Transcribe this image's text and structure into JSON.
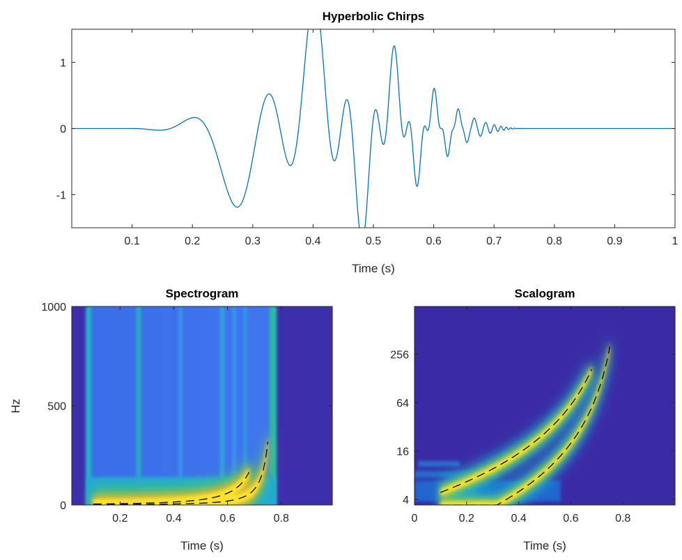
{
  "chart_data": [
    {
      "type": "line",
      "title": "Hyperbolic Chirps",
      "xlabel": "Time (s)",
      "ylabel": "",
      "xlim": [
        0,
        1
      ],
      "ylim": [
        -1.5,
        1.5
      ],
      "xticks": [
        0.1,
        0.2,
        0.3,
        0.4,
        0.5,
        0.6,
        0.7,
        0.8,
        0.9,
        1
      ],
      "xtick_labels": [
        "0.1",
        "0.2",
        "0.3",
        "0.4",
        "0.5",
        "0.6",
        "0.7",
        "0.8",
        "0.9",
        "1"
      ],
      "yticks": [
        -1,
        0,
        1
      ],
      "ytick_labels": [
        "-1",
        "0",
        "1"
      ],
      "line_color": "#0072BD",
      "grid": false,
      "signal": {
        "sample_rate": 2000,
        "components": [
          {
            "start": 0.1,
            "end": 0.68,
            "phase_scale": 15,
            "singularity": 0.8
          },
          {
            "start": 0.1,
            "end": 0.75,
            "phase_scale": 5,
            "singularity": 0.8
          }
        ]
      }
    },
    {
      "type": "heatmap",
      "title": "Spectrogram",
      "xlabel": "Time (s)",
      "ylabel": "Hz",
      "xlim": [
        0.02,
        0.99
      ],
      "ylim": [
        0,
        1000
      ],
      "xticks": [
        0.2,
        0.4,
        0.6,
        0.8
      ],
      "xtick_labels": [
        "0.2",
        "0.4",
        "0.6",
        "0.8"
      ],
      "yticks": [
        0,
        500,
        1000
      ],
      "ytick_labels": [
        "0",
        "500",
        "1000"
      ],
      "colormap": "parula",
      "ridges": [
        {
          "style": "dashed",
          "color": "#000000",
          "phase_scale": 15,
          "singularity": 0.8,
          "t_start": 0.1,
          "t_end": 0.68
        },
        {
          "style": "dashed",
          "color": "#000000",
          "phase_scale": 5,
          "singularity": 0.8,
          "t_start": 0.1,
          "t_end": 0.75
        }
      ]
    },
    {
      "type": "heatmap",
      "title": "Scalogram",
      "xlabel": "Time (s)",
      "ylabel": "",
      "xlim": [
        0,
        1
      ],
      "ylim": [
        3.4,
        1000
      ],
      "yscale": "log",
      "xticks": [
        0,
        0.2,
        0.4,
        0.6,
        0.8
      ],
      "xtick_labels": [
        "0",
        "0.2",
        "0.4",
        "0.6",
        "0.8"
      ],
      "yticks": [
        4,
        16,
        64,
        256
      ],
      "ytick_labels": [
        "4",
        "16",
        "64",
        "256"
      ],
      "colormap": "parula",
      "ridges": [
        {
          "style": "dashed",
          "color": "#000000",
          "phase_scale": 15,
          "singularity": 0.8,
          "t_start": 0.1,
          "t_end": 0.68
        },
        {
          "style": "dashed",
          "color": "#000000",
          "phase_scale": 5,
          "singularity": 0.8,
          "t_start": 0.1,
          "t_end": 0.75
        }
      ]
    }
  ]
}
